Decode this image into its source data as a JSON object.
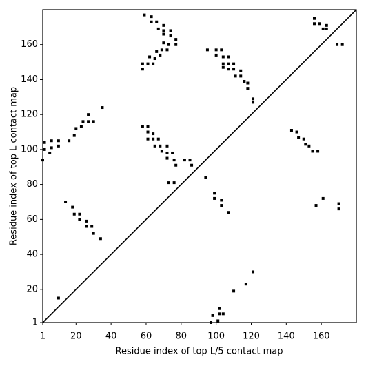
{
  "chart_data": {
    "type": "scatter",
    "x_label": "Residue index of top L/5 contact map",
    "y_label": "Residue index of top L contact map",
    "xlim": [
      1,
      180
    ],
    "ylim": [
      1,
      180
    ],
    "xticks": [
      1,
      20,
      40,
      60,
      80,
      100,
      120,
      140,
      160
    ],
    "yticks": [
      1,
      20,
      40,
      60,
      80,
      100,
      120,
      140,
      160
    ],
    "color": "#000000",
    "x": [
      1,
      2,
      2,
      5,
      6,
      6,
      10,
      10,
      16,
      19,
      20,
      23,
      24,
      27,
      27,
      30,
      35,
      14,
      18,
      19,
      22,
      22,
      26,
      26,
      29,
      30,
      34,
      10,
      59,
      63,
      63,
      66,
      70,
      67,
      70,
      74,
      70,
      74,
      77,
      70,
      73,
      77,
      69,
      72,
      66,
      65,
      68,
      62,
      58,
      61,
      64,
      58,
      58,
      61,
      61,
      64,
      61,
      64,
      67,
      65,
      68,
      72,
      69,
      72,
      75,
      72,
      76,
      77,
      73,
      76,
      82,
      85,
      86,
      95,
      100,
      103,
      100,
      104,
      107,
      104,
      107,
      110,
      104,
      107,
      110,
      114,
      111,
      114,
      116,
      118,
      118,
      121,
      121,
      94,
      99,
      99,
      103,
      103,
      107,
      97,
      98,
      101,
      102,
      102,
      104,
      110,
      117,
      121,
      156,
      156,
      159,
      161,
      163,
      163,
      169,
      172,
      143,
      146,
      147,
      150,
      151,
      153,
      155,
      158,
      161,
      157,
      170,
      170
    ],
    "y": [
      94,
      100,
      104,
      98,
      101,
      105,
      102,
      105,
      105,
      108,
      112,
      113,
      116,
      120,
      116,
      116,
      124,
      70,
      67,
      63,
      63,
      60,
      59,
      56,
      56,
      52,
      49,
      15,
      177,
      176,
      173,
      173,
      171,
      169,
      168,
      168,
      166,
      165,
      163,
      161,
      160,
      160,
      157,
      157,
      156,
      152,
      154,
      153,
      149,
      149,
      149,
      146,
      113,
      113,
      110,
      109,
      106,
      106,
      106,
      102,
      102,
      102,
      99,
      98,
      98,
      95,
      94,
      91,
      81,
      81,
      94,
      94,
      91,
      157,
      157,
      157,
      154,
      153,
      153,
      149,
      149,
      149,
      147,
      146,
      146,
      145,
      142,
      142,
      139,
      138,
      135,
      129,
      127,
      84,
      75,
      72,
      71,
      68,
      64,
      1,
      5,
      2,
      9,
      6,
      6,
      19,
      23,
      30,
      175,
      172,
      172,
      169,
      171,
      169,
      160,
      160,
      111,
      110,
      107,
      106,
      103,
      102,
      99,
      99,
      72,
      68,
      69,
      66
    ]
  }
}
